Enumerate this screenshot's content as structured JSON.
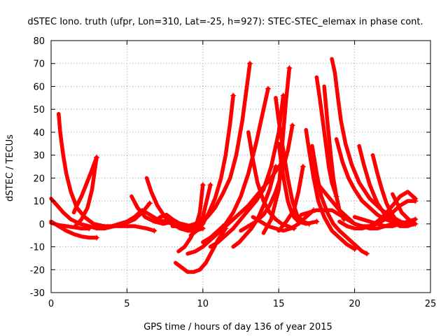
{
  "chart_data": {
    "type": "scatter",
    "title": "dSTEC Iono. truth (ufpr, Lon=310, Lat=-25, h=927): STEC-STEC_elemax in phase cont.",
    "xlabel": "GPS time / hours of day 136 of year 2015",
    "ylabel": "dSTEC  / TECUs",
    "xlim": [
      0,
      25
    ],
    "ylim": [
      -30,
      80
    ],
    "xticks": [
      0,
      5,
      10,
      15,
      20,
      25
    ],
    "yticks": [
      -30,
      -20,
      -10,
      0,
      10,
      20,
      30,
      40,
      50,
      60,
      70,
      80
    ],
    "grid": true,
    "marker": "+",
    "color": "#ff0000",
    "series": [
      {
        "x": [
          0.5,
          0.6,
          0.8,
          1.0,
          1.3,
          1.7,
          2.2,
          2.8,
          3.5,
          4.5,
          5.5,
          6.3,
          6.8
        ],
        "y": [
          48,
          40,
          30,
          22,
          14,
          7,
          3,
          0,
          -1,
          -1,
          -1,
          -2,
          -3
        ]
      },
      {
        "x": [
          0.0,
          0.5,
          1.0,
          1.5,
          2.0,
          2.5,
          3.0
        ],
        "y": [
          1,
          -1,
          -3,
          -4.5,
          -5.5,
          -6,
          -6
        ]
      },
      {
        "x": [
          0.0,
          0.4,
          0.8,
          1.3,
          1.9,
          2.5,
          3.0,
          3.5,
          4.2,
          4.8,
          5.5,
          6.0,
          6.5
        ],
        "y": [
          11,
          8,
          5,
          2,
          0,
          -1,
          -2,
          -2,
          -1,
          0,
          2,
          5,
          9
        ]
      },
      {
        "x": [
          1.6,
          2.0,
          2.4,
          2.7,
          3.0
        ],
        "y": [
          -1,
          2,
          7,
          15,
          29
        ]
      },
      {
        "x": [
          1.5,
          1.7,
          2.0,
          2.3,
          2.6,
          3.0
        ],
        "y": [
          5,
          8,
          12,
          17,
          22,
          29
        ]
      },
      {
        "x": [
          0.0,
          0.5,
          1.0,
          1.5,
          2.0,
          2.5
        ],
        "y": [
          0.5,
          -0.5,
          -1,
          -1.5,
          -2,
          -2
        ]
      },
      {
        "x": [
          3.5,
          4.0,
          4.5,
          5.0,
          5.5,
          6.0,
          6.5,
          7.0,
          7.5,
          8.0,
          8.5,
          9.0
        ],
        "y": [
          -2,
          -1,
          0,
          1,
          3,
          6,
          4,
          2,
          1,
          0,
          -1,
          -2
        ]
      },
      {
        "x": [
          6.3,
          6.6,
          7.0,
          7.5,
          8.0,
          8.5,
          9.0,
          9.5,
          10.0
        ],
        "y": [
          20,
          14,
          8,
          3,
          0,
          -2,
          -3,
          -3,
          -2
        ]
      },
      {
        "x": [
          5.3,
          5.7,
          6.2,
          6.8,
          7.4,
          8.0,
          8.6,
          9.2
        ],
        "y": [
          12,
          7,
          3,
          1,
          0,
          1,
          0,
          -1
        ]
      },
      {
        "x": [
          6.8,
          7.2,
          7.6,
          8.0,
          8.5,
          9.0,
          9.5,
          10.0
        ],
        "y": [
          1,
          3,
          4,
          2,
          0,
          -1,
          0,
          2
        ]
      },
      {
        "x": [
          8.2,
          8.6,
          9.0,
          9.4,
          9.8,
          10.2,
          10.6,
          11.0,
          11.5
        ],
        "y": [
          -17,
          -19,
          -21,
          -21,
          -20,
          -17,
          -12,
          -7,
          -2
        ]
      },
      {
        "x": [
          8.4,
          8.8,
          9.2,
          9.5,
          9.8,
          10.0
        ],
        "y": [
          -12,
          -10,
          -6,
          -2,
          5,
          17
        ]
      },
      {
        "x": [
          8.0,
          8.5,
          9.0,
          9.5,
          10.0,
          10.5
        ],
        "y": [
          -1,
          -1,
          -1,
          0,
          3,
          17
        ]
      },
      {
        "x": [
          9.0,
          9.5,
          10.0,
          10.5,
          11.0,
          11.5,
          12.0,
          12.5,
          13.0,
          13.5,
          14.0,
          14.5,
          15.0
        ],
        "y": [
          -13,
          -12,
          -10,
          -7,
          -4,
          -1,
          2,
          5,
          8,
          12,
          16,
          20,
          25
        ]
      },
      {
        "x": [
          9.2,
          9.6,
          10.0,
          10.4,
          10.8,
          11.2,
          11.5,
          11.8,
          12.0
        ],
        "y": [
          -5,
          -3,
          0,
          5,
          11,
          20,
          30,
          44,
          56
        ]
      },
      {
        "x": [
          9.3,
          9.8,
          10.3,
          10.8,
          11.3,
          11.8,
          12.2,
          12.6,
          12.9,
          13.1
        ],
        "y": [
          -2,
          0,
          3,
          7,
          13,
          20,
          30,
          45,
          60,
          70
        ]
      },
      {
        "x": [
          10.0,
          10.5,
          11.0,
          11.5,
          12.0,
          12.5,
          13.0,
          13.5,
          14.0,
          14.3
        ],
        "y": [
          -8,
          -6,
          -3,
          0,
          5,
          12,
          22,
          35,
          50,
          59
        ]
      },
      {
        "x": [
          10.5,
          11.0,
          11.5,
          12.0,
          12.5,
          13.0,
          13.5,
          14.0,
          14.5,
          15.0,
          15.3
        ],
        "y": [
          -10,
          -8,
          -5,
          -2,
          2,
          6,
          10,
          15,
          25,
          40,
          56
        ]
      },
      {
        "x": [
          12.0,
          12.4,
          12.8,
          13.2,
          13.6,
          14.0,
          14.4,
          14.8
        ],
        "y": [
          -10,
          -8,
          -5,
          -2,
          2,
          8,
          15,
          25
        ]
      },
      {
        "x": [
          12.5,
          13.0,
          13.5,
          14.0,
          14.4,
          14.8,
          15.2,
          15.6,
          15.9
        ],
        "y": [
          -3,
          -1,
          1,
          4,
          8,
          14,
          22,
          32,
          43
        ]
      },
      {
        "x": [
          13.0,
          13.3,
          13.6,
          14.0,
          14.4,
          14.8,
          15.2,
          15.6,
          16.0
        ],
        "y": [
          40,
          28,
          18,
          10,
          5,
          2,
          0,
          -1,
          -2
        ]
      },
      {
        "x": [
          14.8,
          15.0,
          15.3,
          15.6,
          15.9,
          16.2,
          16.6,
          17.0
        ],
        "y": [
          55,
          45,
          32,
          20,
          10,
          4,
          1,
          0
        ]
      },
      {
        "x": [
          15.0,
          15.2,
          15.4,
          15.6,
          15.8,
          16.0,
          16.3,
          16.8,
          17.5
        ],
        "y": [
          35,
          25,
          17,
          10,
          6,
          3,
          1,
          0,
          1
        ]
      },
      {
        "x": [
          13.3,
          13.8,
          14.3,
          14.8,
          15.3,
          15.8,
          16.3,
          16.8,
          17.3
        ],
        "y": [
          3,
          1,
          -1,
          -2,
          -3,
          -2,
          0,
          3,
          6
        ]
      },
      {
        "x": [
          14.0,
          14.5,
          15.0,
          15.3,
          15.5,
          15.7
        ],
        "y": [
          -4,
          2,
          15,
          40,
          55,
          68
        ]
      },
      {
        "x": [
          15.0,
          15.5,
          16.0,
          16.3,
          16.6
        ],
        "y": [
          -3,
          1,
          6,
          14,
          25
        ]
      },
      {
        "x": [
          16.8,
          17.0,
          17.3,
          17.6,
          18.0,
          18.5,
          19.0,
          19.5,
          20.0
        ],
        "y": [
          41,
          32,
          20,
          10,
          3,
          -3,
          -6,
          -9,
          -11
        ]
      },
      {
        "x": [
          17.2,
          17.5,
          17.8,
          18.2,
          18.6,
          19.0,
          19.5,
          20.0,
          20.5,
          20.8
        ],
        "y": [
          34,
          22,
          12,
          5,
          0,
          -3,
          -6,
          -9,
          -12,
          -13
        ]
      },
      {
        "x": [
          17.5,
          17.7,
          17.9,
          18.1,
          18.3,
          18.5,
          18.8
        ],
        "y": [
          64,
          55,
          45,
          35,
          25,
          18,
          12
        ]
      },
      {
        "x": [
          18.0,
          18.2,
          18.4,
          18.6,
          18.8,
          19.0,
          19.3
        ],
        "y": [
          60,
          45,
          32,
          20,
          12,
          6,
          2
        ]
      },
      {
        "x": [
          18.5,
          18.7,
          18.9,
          19.1,
          19.4,
          19.8,
          20.3,
          21.0,
          21.8,
          22.5,
          23.0,
          23.6
        ],
        "y": [
          72,
          66,
          55,
          45,
          35,
          26,
          18,
          11,
          6,
          3,
          1,
          0
        ]
      },
      {
        "x": [
          18.8,
          19.2,
          19.6,
          20.0,
          20.5,
          21.0,
          21.5,
          22.0,
          22.5,
          23.0,
          23.8
        ],
        "y": [
          37,
          27,
          20,
          15,
          10,
          7,
          4,
          2,
          1,
          0,
          0
        ]
      },
      {
        "x": [
          20.3,
          20.6,
          21.0,
          21.5,
          22.0,
          22.5,
          23.0,
          23.5,
          23.9
        ],
        "y": [
          34,
          26,
          17,
          9,
          4,
          1,
          -1,
          -1,
          0
        ]
      },
      {
        "x": [
          21.2,
          21.5,
          21.8,
          22.1,
          22.4,
          22.7,
          23.0
        ],
        "y": [
          30,
          22,
          15,
          9,
          5,
          2,
          1
        ]
      },
      {
        "x": [
          22.5,
          22.8,
          23.1,
          23.4,
          23.7,
          24.0
        ],
        "y": [
          13,
          9,
          5,
          3,
          1,
          0
        ]
      },
      {
        "x": [
          16.5,
          17.0,
          17.5,
          18.0,
          18.5,
          19.0,
          19.5,
          20.0,
          20.5,
          21.0,
          21.5,
          22.0,
          22.5
        ],
        "y": [
          4,
          5,
          6,
          6,
          6,
          4,
          2,
          0,
          -1,
          -2,
          -2,
          -1,
          0
        ]
      },
      {
        "x": [
          17.5,
          18.0,
          18.5,
          19.0,
          19.5,
          20.0,
          20.5,
          21.0,
          21.5,
          22.0,
          22.5,
          23.0,
          23.5,
          24.0
        ],
        "y": [
          18,
          14,
          10,
          6,
          3,
          0,
          -1,
          -1,
          0,
          2,
          5,
          8,
          10,
          10
        ]
      },
      {
        "x": [
          19.0,
          19.5,
          20.0,
          20.5,
          21.0,
          21.5,
          22.0,
          22.5,
          23.0,
          23.5,
          24.0
        ],
        "y": [
          1,
          -1,
          -2,
          -2,
          -1,
          1,
          4,
          8,
          12,
          14,
          11
        ]
      },
      {
        "x": [
          20.0,
          20.5,
          21.0,
          21.5,
          22.0,
          22.5,
          23.0,
          23.5,
          24.0
        ],
        "y": [
          3,
          2,
          1,
          0,
          -1,
          -1,
          0,
          1,
          2
        ]
      }
    ]
  }
}
